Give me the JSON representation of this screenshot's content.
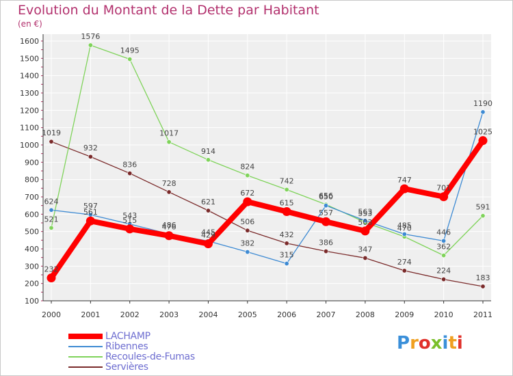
{
  "title": "Evolution du Montant de la Dette par Habitant",
  "subtitle": "(en €)",
  "logo": {
    "text": "Proxiti",
    "letter_colors": [
      "#3a8fd9",
      "#f0a020",
      "#e0302a",
      "#7bbf2a",
      "#3a8fd9",
      "#f0a020",
      "#e0302a"
    ]
  },
  "chart_data": {
    "type": "line",
    "x": [
      "2000",
      "2001",
      "2002",
      "2003",
      "2004",
      "2005",
      "2006",
      "2007",
      "2008",
      "2009",
      "2010",
      "2011"
    ],
    "ylim": [
      100,
      1600
    ],
    "yticks": [
      100,
      200,
      300,
      400,
      500,
      600,
      700,
      800,
      900,
      1000,
      1100,
      1200,
      1300,
      1400,
      1500,
      1600
    ],
    "grid": true,
    "legend_placement": "bottom-left",
    "series": [
      {
        "name": "LACHAMP",
        "color": "#ff0000",
        "values": [
          232,
          561,
          515,
          476,
          429,
          672,
          615,
          557,
          503,
          747,
          701,
          1025
        ]
      },
      {
        "name": "Ribennes",
        "color": "#3d8ad3",
        "values": [
          624,
          597,
          543,
          486,
          445,
          382,
          315,
          650,
          563,
          485,
          446,
          1190
        ]
      },
      {
        "name": "Recoules-de-Fumas",
        "color": "#7fd35a",
        "values": [
          521,
          1576,
          1495,
          1017,
          914,
          824,
          742,
          656,
          553,
          470,
          362,
          591
        ]
      },
      {
        "name": "Servières",
        "color": "#7a2a2a",
        "values": [
          1019,
          932,
          836,
          728,
          621,
          506,
          432,
          386,
          347,
          274,
          224,
          183
        ]
      }
    ]
  }
}
